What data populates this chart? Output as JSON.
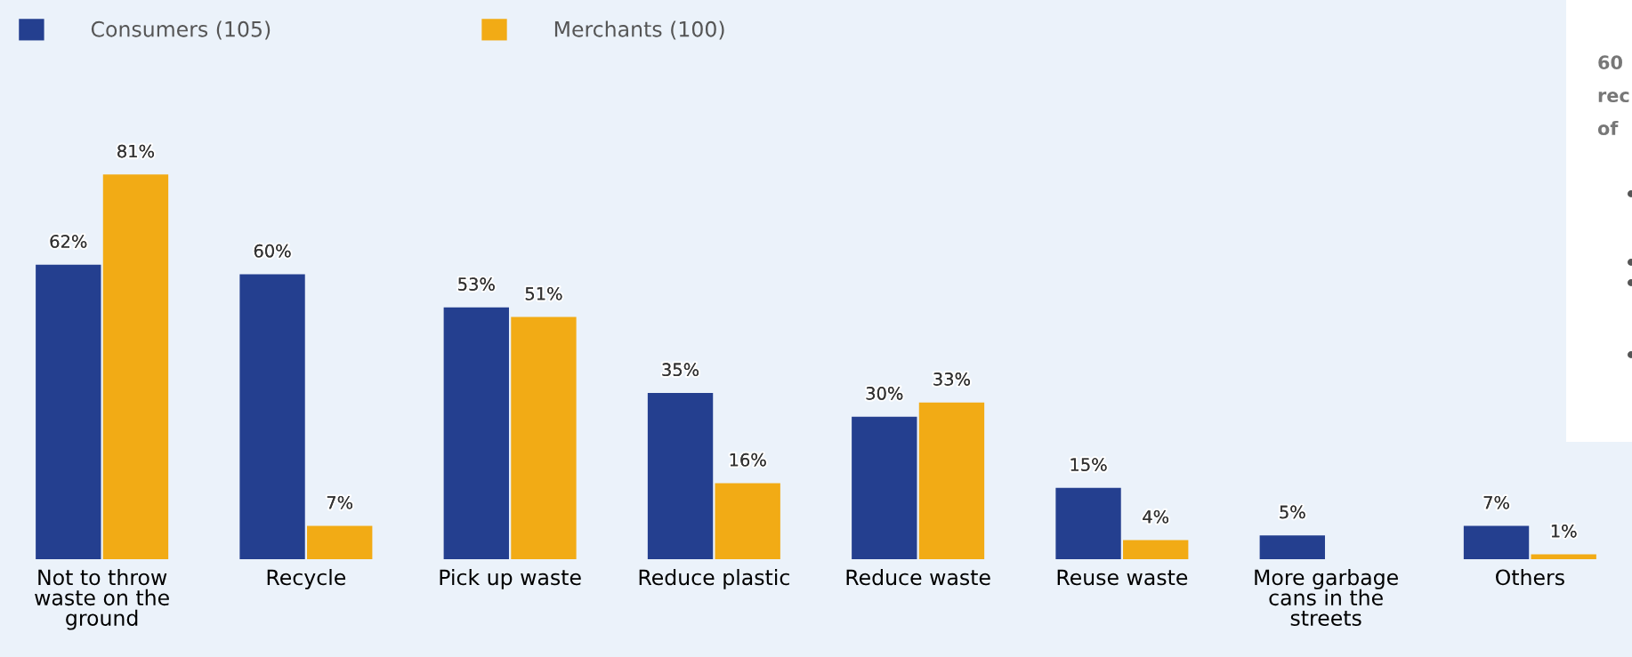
{
  "chart_data": [
    {
      "type": "bar",
      "categories": [
        "Not to throw\nwaste on the\nground",
        "Recycle",
        "Pick up waste",
        "Reduce plastic",
        "Reduce waste",
        "Reuse waste",
        "More garbage\ncans in the\nstreets",
        "Others"
      ],
      "series": [
        {
          "name": "Consumers (105)",
          "color": "#243f8f",
          "values": [
            62,
            60,
            53,
            35,
            30,
            15,
            5,
            7
          ],
          "value_labels": [
            "62%",
            "60%",
            "53%",
            "35%",
            "30%",
            "15%",
            "5%",
            "7%"
          ]
        },
        {
          "name": "Merchants (100)",
          "color": "#f2ab15",
          "values": [
            81,
            7,
            51,
            16,
            33,
            4,
            null,
            1
          ],
          "value_labels": [
            "81%",
            "7%",
            "51%",
            "16%",
            "33%",
            "4%",
            null,
            "1%"
          ]
        }
      ],
      "legend": "top left",
      "grid": false
    },
    {
      "type": "other",
      "annotations": [
        "60",
        "rec",
        "of"
      ]
    }
  ]
}
